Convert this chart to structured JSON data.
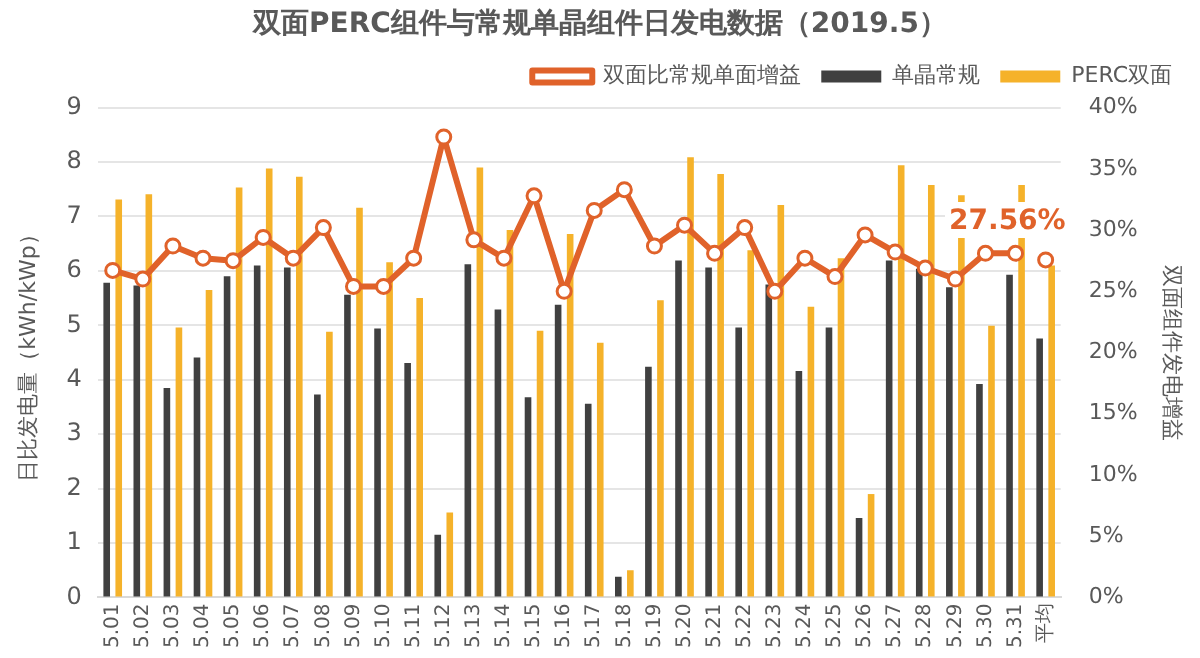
{
  "chart_data": {
    "type": "bar",
    "title": "双面PERC组件与常规单晶组件日发电数据（2019.5）",
    "ylabel": "日比发电量（kWh/kWp）",
    "y2label": "双面组件发电增益",
    "categories": [
      "5.01",
      "5.02",
      "5.03",
      "5.04",
      "5.05",
      "5.06",
      "5.07",
      "5.08",
      "5.09",
      "5.10",
      "5.11",
      "5.12",
      "5.13",
      "5.14",
      "5.15",
      "5.16",
      "5.17",
      "5.18",
      "5.19",
      "5.20",
      "5.21",
      "5.22",
      "5.23",
      "5.24",
      "5.25",
      "5.26",
      "5.27",
      "5.28",
      "5.29",
      "5.30",
      "5.31",
      "平均"
    ],
    "series": [
      {
        "name": "单晶常规",
        "color": "#404040",
        "values": [
          5.78,
          5.73,
          3.85,
          4.41,
          5.9,
          6.1,
          6.06,
          3.73,
          5.56,
          4.94,
          4.31,
          1.15,
          6.12,
          5.29,
          3.68,
          5.38,
          3.56,
          0.38,
          4.24,
          6.19,
          6.06,
          4.96,
          5.75,
          4.16,
          4.96,
          1.46,
          6.19,
          6.04,
          5.7,
          3.92,
          5.93,
          4.76
        ]
      },
      {
        "name": "PERC双面",
        "color": "#f5b22a",
        "values": [
          7.31,
          7.41,
          4.96,
          5.65,
          7.53,
          7.88,
          7.73,
          4.88,
          7.16,
          6.16,
          5.5,
          1.56,
          7.9,
          6.75,
          4.9,
          6.68,
          4.68,
          0.5,
          5.46,
          8.09,
          7.78,
          6.38,
          7.21,
          5.34,
          6.23,
          1.9,
          7.94,
          7.58,
          7.39,
          4.99,
          7.58,
          6.1
        ]
      },
      {
        "name": "双面比常规单面增益",
        "type": "line",
        "axis": "y2",
        "color": "#e0622a",
        "marker": "circle",
        "values": [
          26.7,
          26.0,
          28.7,
          27.7,
          27.5,
          29.4,
          27.7,
          30.2,
          25.4,
          25.4,
          27.7,
          37.6,
          29.2,
          27.7,
          32.8,
          25.0,
          31.6,
          33.3,
          28.7,
          30.4,
          28.1,
          30.2,
          25.0,
          27.7,
          26.2,
          29.6,
          28.2,
          26.9,
          26.0,
          28.1,
          28.1,
          null
        ]
      },
      {
        "type": "scatter",
        "axis": "y2",
        "color": "#e0622a",
        "marker": "circle",
        "values": [
          null,
          null,
          null,
          null,
          null,
          null,
          null,
          null,
          null,
          null,
          null,
          null,
          null,
          null,
          null,
          null,
          null,
          null,
          null,
          null,
          null,
          null,
          null,
          null,
          null,
          null,
          null,
          null,
          null,
          null,
          null,
          27.56
        ],
        "value_labels": [
          null,
          null,
          null,
          null,
          null,
          null,
          null,
          null,
          null,
          null,
          null,
          null,
          null,
          null,
          null,
          null,
          null,
          null,
          null,
          null,
          null,
          null,
          null,
          null,
          null,
          null,
          null,
          null,
          null,
          null,
          null,
          "27.56%"
        ]
      }
    ],
    "ylim": [
      0,
      9
    ],
    "yticks": [
      0,
      1,
      2,
      3,
      4,
      5,
      6,
      7,
      8,
      9
    ],
    "y2lim": [
      0,
      40
    ],
    "y2ticks": [
      {
        "value": 0,
        "label": "0%"
      },
      {
        "value": 5,
        "label": "5%"
      },
      {
        "value": 10,
        "label": "10%"
      },
      {
        "value": 15,
        "label": "15%"
      },
      {
        "value": 20,
        "label": "20%"
      },
      {
        "value": 25,
        "label": "25%"
      },
      {
        "value": 30,
        "label": "30%"
      },
      {
        "value": 35,
        "label": "35%"
      },
      {
        "value": 40,
        "label": "40%"
      }
    ],
    "grid": "y",
    "legend": "top"
  }
}
